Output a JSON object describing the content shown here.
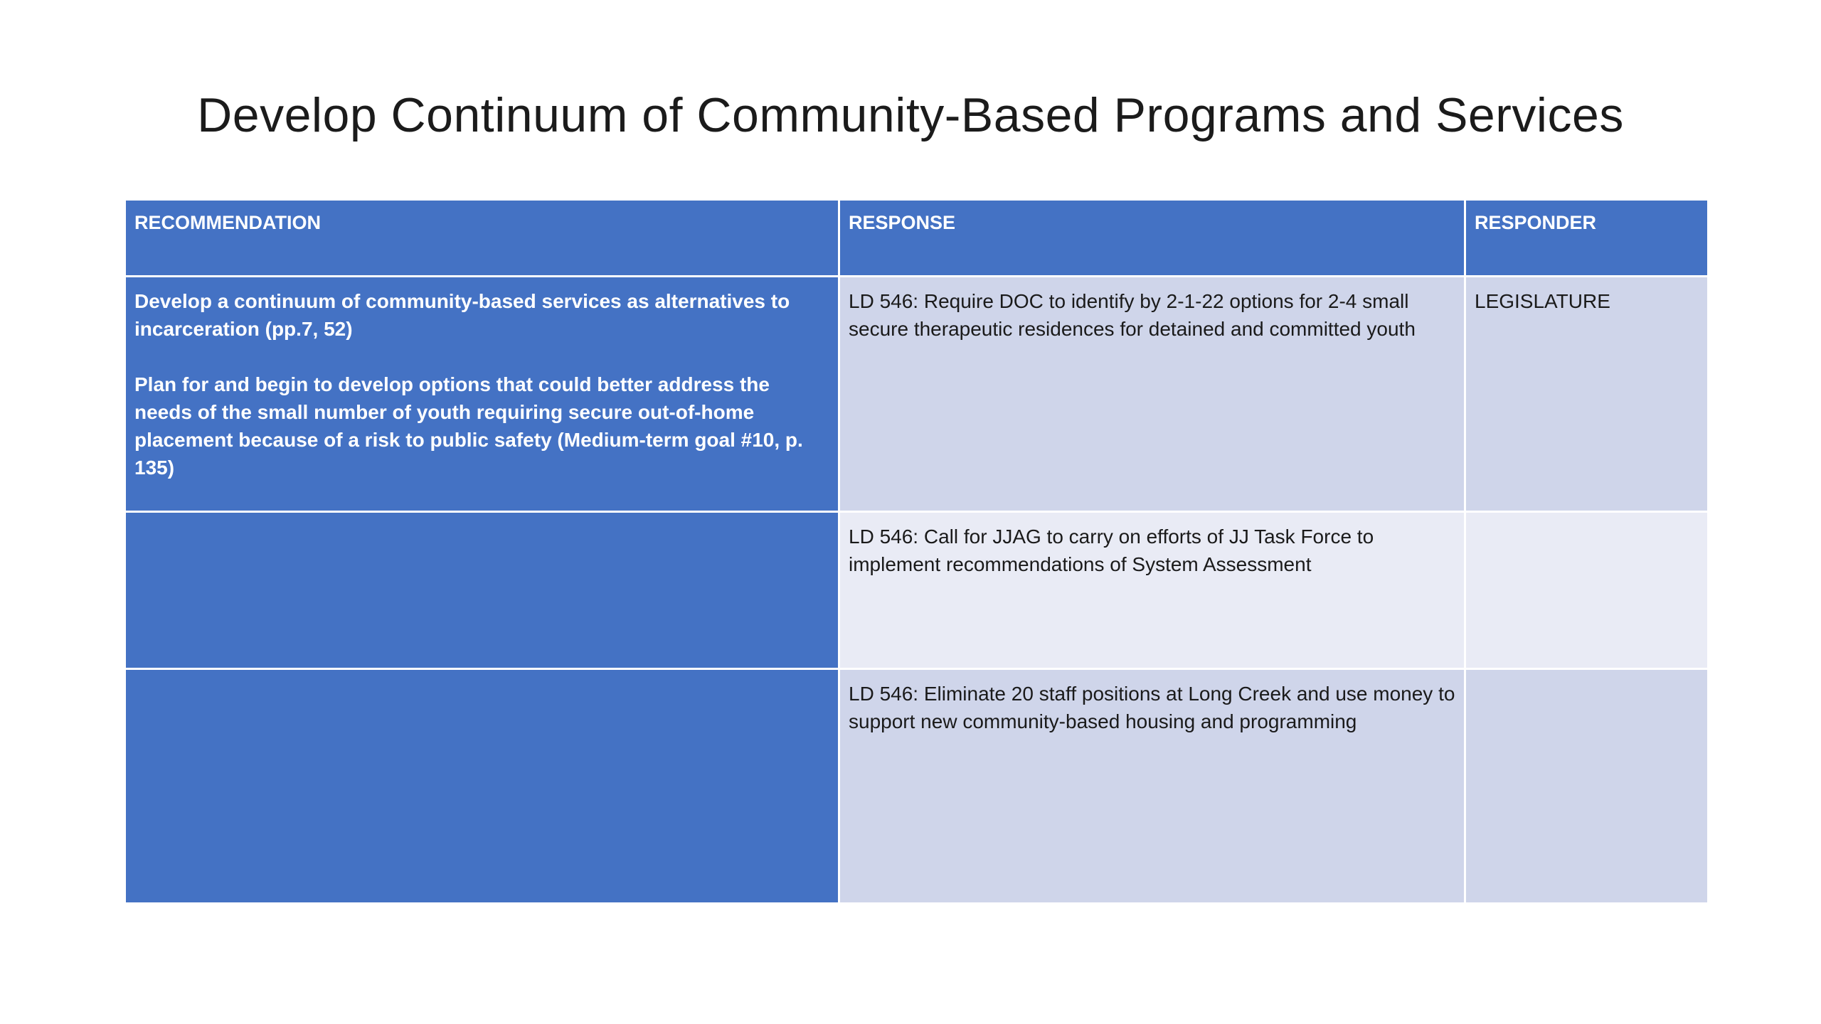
{
  "slide": {
    "title": "Develop Continuum of Community-Based Programs and Services"
  },
  "table": {
    "headers": {
      "recommendation": "RECOMMENDATION",
      "response": "RESPONSE",
      "responder": "RESPONDER"
    },
    "rows": [
      {
        "recommendation": [
          "Develop a continuum of community-based services as alternatives to incarceration (pp.7, 52)",
          "Plan for and begin to develop options that could better address the needs of the small number of youth requiring secure out-of-home placement because of a risk to public safety (Medium-term goal #10, p. 135)"
        ],
        "response": "LD 546: Require DOC to identify by 2-1-22 options for 2-4 small secure therapeutic residences for detained and committed youth",
        "responder": "LEGISLATURE"
      },
      {
        "recommendation": [],
        "response": "LD 546: Call for JJAG to carry on efforts of JJ Task Force to implement recommendations of System Assessment",
        "responder": ""
      },
      {
        "recommendation": [],
        "response": "LD 546: Eliminate 20 staff positions at Long Creek and use money to support new community-based housing and programming",
        "responder": ""
      }
    ]
  },
  "colors": {
    "header_fill": "#4472c4",
    "recommendation_fill": "#4472c4",
    "band_dark": "#cfd5ea",
    "band_light": "#e9ebf5"
  }
}
